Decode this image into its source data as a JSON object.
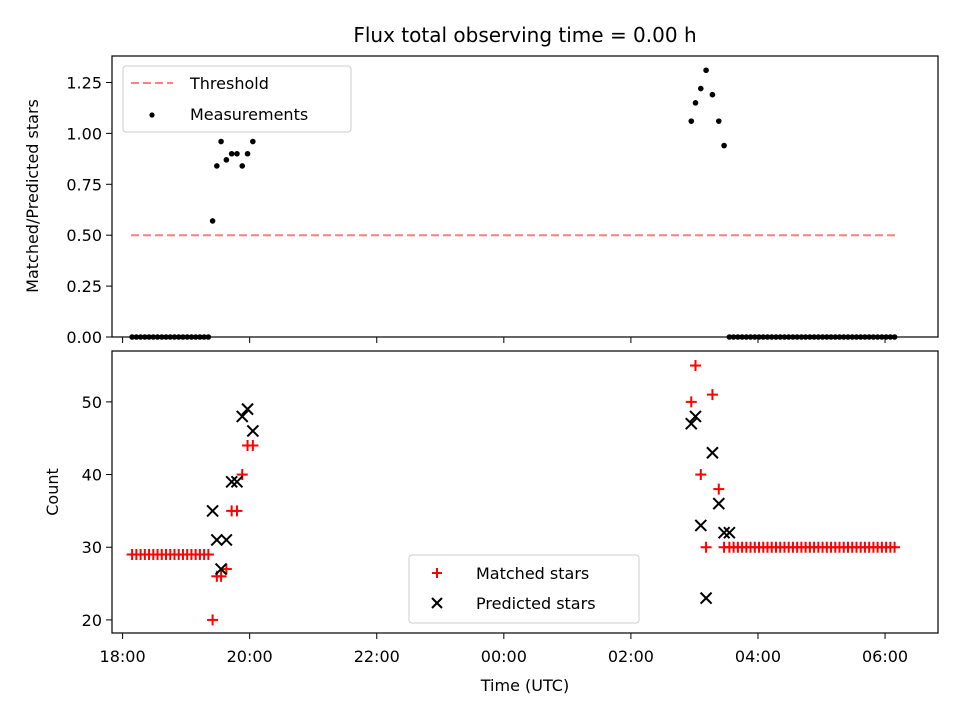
{
  "title": "Flux total observing time = 0.00 h",
  "chart_data": [
    {
      "type": "scatter",
      "panel": "top",
      "title": "Flux total observing time = 0.00 h",
      "xlabel": "",
      "ylabel": "Matched/Predicted stars",
      "xlim": [
        "17:50",
        "06:50"
      ],
      "ylim": [
        0,
        1.38
      ],
      "xticks": [
        "18:00",
        "20:00",
        "22:00",
        "00:00",
        "02:00",
        "04:00",
        "06:00"
      ],
      "yticks": [
        "0.00",
        "0.25",
        "0.50",
        "0.75",
        "1.00",
        "1.25"
      ],
      "legend_position": "upper left",
      "series": [
        {
          "name": "Threshold",
          "style": "dashed-line",
          "color": "#ff7f7f",
          "x": [
            "18:08",
            "06:10"
          ],
          "y": [
            0.5,
            0.5
          ]
        },
        {
          "name": "Measurements",
          "style": "dot",
          "color": "#000000",
          "x": [
            "18:09",
            "18:13",
            "18:17",
            "18:21",
            "18:25",
            "18:29",
            "18:33",
            "18:37",
            "18:41",
            "18:45",
            "18:49",
            "18:53",
            "18:57",
            "19:01",
            "19:05",
            "19:09",
            "19:13",
            "19:17",
            "19:21",
            "19:25",
            "19:29",
            "19:33",
            "19:38",
            "19:43",
            "19:48",
            "19:53",
            "19:58",
            "20:03",
            "02:57",
            "03:01",
            "03:06",
            "03:11",
            "03:17",
            "03:23",
            "03:28",
            "03:33",
            "03:37",
            "03:41",
            "03:45",
            "03:49",
            "03:53",
            "03:57",
            "04:01",
            "04:05",
            "04:09",
            "04:13",
            "04:17",
            "04:21",
            "04:25",
            "04:29",
            "04:33",
            "04:37",
            "04:41",
            "04:45",
            "04:49",
            "04:53",
            "04:57",
            "05:01",
            "05:05",
            "05:09",
            "05:13",
            "05:17",
            "05:21",
            "05:25",
            "05:29",
            "05:33",
            "05:37",
            "05:41",
            "05:45",
            "05:49",
            "05:53",
            "05:57",
            "06:01",
            "06:05",
            "06:09"
          ],
          "y": [
            0,
            0,
            0,
            0,
            0,
            0,
            0,
            0,
            0,
            0,
            0,
            0,
            0,
            0,
            0,
            0,
            0,
            0,
            0,
            0.57,
            0.84,
            0.96,
            0.87,
            0.9,
            0.9,
            0.84,
            0.9,
            0.96,
            1.06,
            1.15,
            1.22,
            1.31,
            1.19,
            1.06,
            0.94,
            0,
            0,
            0,
            0,
            0,
            0,
            0,
            0,
            0,
            0,
            0,
            0,
            0,
            0,
            0,
            0,
            0,
            0,
            0,
            0,
            0,
            0,
            0,
            0,
            0,
            0,
            0,
            0,
            0,
            0,
            0,
            0,
            0,
            0,
            0,
            0,
            0,
            0,
            0,
            0
          ]
        }
      ]
    },
    {
      "type": "scatter",
      "panel": "bottom",
      "xlabel": "Time (UTC)",
      "ylabel": "Count",
      "xlim": [
        "17:50",
        "06:50"
      ],
      "ylim": [
        18.2,
        57
      ],
      "xticks": [
        "18:00",
        "20:00",
        "22:00",
        "00:00",
        "02:00",
        "04:00",
        "06:00"
      ],
      "yticks": [
        "20",
        "30",
        "40",
        "50"
      ],
      "legend_position": "lower center",
      "series": [
        {
          "name": "Matched stars",
          "marker": "plus",
          "color": "#ff0000",
          "x": [
            "18:09",
            "18:13",
            "18:17",
            "18:21",
            "18:25",
            "18:29",
            "18:33",
            "18:37",
            "18:41",
            "18:45",
            "18:49",
            "18:53",
            "18:57",
            "19:01",
            "19:05",
            "19:09",
            "19:13",
            "19:17",
            "19:21",
            "19:25",
            "19:29",
            "19:33",
            "19:38",
            "19:43",
            "19:48",
            "19:53",
            "19:58",
            "20:03",
            "02:57",
            "03:01",
            "03:06",
            "03:11",
            "03:17",
            "03:23",
            "03:28",
            "03:33",
            "03:37",
            "03:41",
            "03:45",
            "03:49",
            "03:53",
            "03:57",
            "04:01",
            "04:05",
            "04:09",
            "04:13",
            "04:17",
            "04:21",
            "04:25",
            "04:29",
            "04:33",
            "04:37",
            "04:41",
            "04:45",
            "04:49",
            "04:53",
            "04:57",
            "05:01",
            "05:05",
            "05:09",
            "05:13",
            "05:17",
            "05:21",
            "05:25",
            "05:29",
            "05:33",
            "05:37",
            "05:41",
            "05:45",
            "05:49",
            "05:53",
            "05:57",
            "06:01",
            "06:05",
            "06:09"
          ],
          "y": [
            29,
            29,
            29,
            29,
            29,
            29,
            29,
            29,
            29,
            29,
            29,
            29,
            29,
            29,
            29,
            29,
            29,
            29,
            29,
            20,
            26,
            26,
            27,
            35,
            35,
            40,
            44,
            44,
            50,
            55,
            40,
            30,
            51,
            38,
            30,
            30,
            30,
            30,
            30,
            30,
            30,
            30,
            30,
            30,
            30,
            30,
            30,
            30,
            30,
            30,
            30,
            30,
            30,
            30,
            30,
            30,
            30,
            30,
            30,
            30,
            30,
            30,
            30,
            30,
            30,
            30,
            30,
            30,
            30,
            30,
            30,
            30,
            30,
            30,
            30
          ]
        },
        {
          "name": "Predicted stars",
          "marker": "x",
          "color": "#000000",
          "x": [
            "19:25",
            "19:29",
            "19:33",
            "19:38",
            "19:43",
            "19:48",
            "19:53",
            "19:58",
            "20:03",
            "02:57",
            "03:01",
            "03:06",
            "03:11",
            "03:17",
            "03:23",
            "03:28",
            "03:33"
          ],
          "y": [
            35,
            31,
            27,
            31,
            39,
            39,
            48,
            49,
            46,
            47,
            48,
            33,
            23,
            43,
            36,
            32,
            32
          ]
        }
      ]
    }
  ]
}
